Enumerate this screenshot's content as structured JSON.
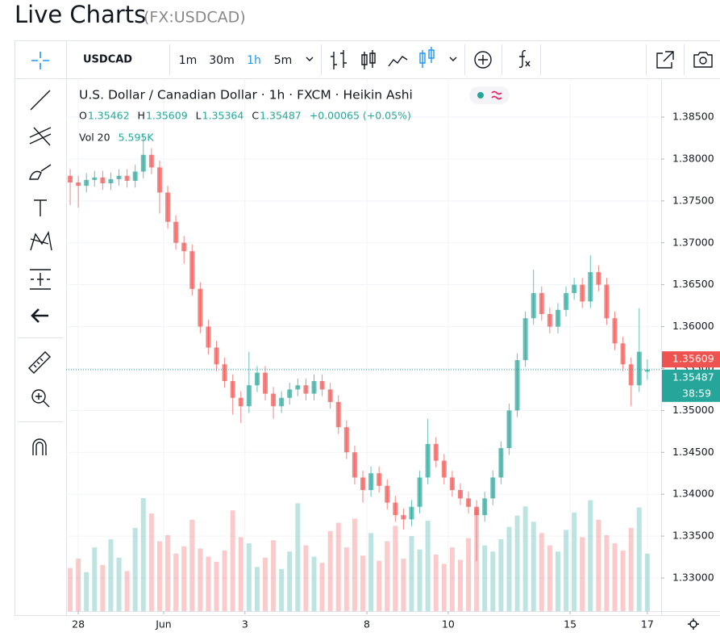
{
  "page": {
    "title": "Live Charts",
    "symbol": "(FX:USDCAD)"
  },
  "toolbar": {
    "symbol": "USDCAD",
    "intervals": [
      "1m",
      "30m",
      "1h",
      "5m"
    ],
    "active_interval": 2
  },
  "chart_data": {
    "type": "candlestick",
    "title": "U.S. Dollar / Canadian Dollar · 1h · FXCM · Heikin Ashi",
    "ohlc_legend": [
      {
        "key": "O",
        "value": "1.35462"
      },
      {
        "key": "H",
        "value": "1.35609"
      },
      {
        "key": "L",
        "value": "1.35364"
      },
      {
        "key": "C",
        "value": "1.35487"
      }
    ],
    "change": "+0.00065 (+0.05%)",
    "volume_legend": {
      "name": "Vol 20",
      "value": "5.595K"
    },
    "up_color": "#26a69a",
    "down_color": "#ef5350",
    "open": [
      1.378,
      1.3772,
      1.3768,
      1.3775,
      1.3778,
      1.3771,
      1.3776,
      1.378,
      1.3774,
      1.3785,
      1.3805,
      1.379,
      1.376,
      1.3725,
      1.37,
      1.369,
      1.3645,
      1.36,
      1.3575,
      1.3555,
      1.3535,
      1.3515,
      1.3505,
      1.353,
      1.3545,
      1.352,
      1.3505,
      1.3515,
      1.3525,
      1.353,
      1.352,
      1.3535,
      1.3525,
      1.351,
      1.348,
      1.345,
      1.342,
      1.3405,
      1.3425,
      1.341,
      1.339,
      1.3375,
      1.337,
      1.3385,
      1.342,
      1.346,
      1.344,
      1.342,
      1.3405,
      1.3395,
      1.3385,
      1.3375,
      1.3395,
      1.342,
      1.3455,
      1.35,
      1.356,
      1.361,
      1.364,
      1.3615,
      1.36,
      1.362,
      1.364,
      1.365,
      1.363,
      1.3665,
      1.365,
      1.361,
      1.358,
      1.3555,
      1.353,
      1.35462
    ],
    "high": [
      1.3788,
      1.378,
      1.3783,
      1.3786,
      1.3786,
      1.3784,
      1.3788,
      1.3788,
      1.3793,
      1.383,
      1.3813,
      1.3798,
      1.3768,
      1.3733,
      1.3708,
      1.3698,
      1.3653,
      1.3608,
      1.3583,
      1.3563,
      1.3543,
      1.3523,
      1.357,
      1.3553,
      1.3553,
      1.3528,
      1.3523,
      1.3533,
      1.3538,
      1.3538,
      1.3543,
      1.3543,
      1.3533,
      1.3518,
      1.3488,
      1.3458,
      1.3428,
      1.3433,
      1.3433,
      1.3418,
      1.3398,
      1.3383,
      1.3393,
      1.3428,
      1.349,
      1.3468,
      1.3448,
      1.3428,
      1.3413,
      1.3403,
      1.3393,
      1.3403,
      1.3428,
      1.3463,
      1.3508,
      1.3568,
      1.3618,
      1.3668,
      1.3648,
      1.3623,
      1.3628,
      1.3648,
      1.3658,
      1.3658,
      1.3685,
      1.3673,
      1.3658,
      1.3618,
      1.3588,
      1.3563,
      1.3622,
      1.35609
    ],
    "low": [
      1.3745,
      1.3742,
      1.376,
      1.3767,
      1.3763,
      1.3763,
      1.3768,
      1.3766,
      1.3766,
      1.3777,
      1.3782,
      1.3735,
      1.3717,
      1.3692,
      1.3675,
      1.3637,
      1.3592,
      1.3567,
      1.3547,
      1.3527,
      1.3495,
      1.3485,
      1.3497,
      1.3522,
      1.3512,
      1.349,
      1.3497,
      1.3507,
      1.3517,
      1.3512,
      1.3512,
      1.3517,
      1.3502,
      1.3472,
      1.3442,
      1.3412,
      1.339,
      1.3397,
      1.3402,
      1.3382,
      1.3367,
      1.3358,
      1.3362,
      1.3377,
      1.3412,
      1.3432,
      1.3412,
      1.3397,
      1.3387,
      1.3377,
      1.332,
      1.3367,
      1.3387,
      1.3412,
      1.3447,
      1.3492,
      1.3552,
      1.3602,
      1.3607,
      1.3592,
      1.3592,
      1.3612,
      1.3632,
      1.3622,
      1.3622,
      1.3642,
      1.3602,
      1.3572,
      1.3547,
      1.3505,
      1.3522,
      1.35364
    ],
    "close": [
      1.3772,
      1.3768,
      1.3775,
      1.3778,
      1.3771,
      1.3776,
      1.378,
      1.3774,
      1.3785,
      1.3805,
      1.379,
      1.376,
      1.3725,
      1.37,
      1.369,
      1.3645,
      1.36,
      1.3575,
      1.3555,
      1.3535,
      1.3515,
      1.3505,
      1.353,
      1.3545,
      1.352,
      1.3505,
      1.3515,
      1.3525,
      1.353,
      1.352,
      1.3535,
      1.3525,
      1.351,
      1.348,
      1.345,
      1.342,
      1.3405,
      1.3425,
      1.341,
      1.339,
      1.3375,
      1.337,
      1.3385,
      1.342,
      1.346,
      1.344,
      1.342,
      1.3405,
      1.3395,
      1.3385,
      1.3375,
      1.3395,
      1.342,
      1.3455,
      1.35,
      1.356,
      1.361,
      1.364,
      1.3615,
      1.36,
      1.362,
      1.364,
      1.365,
      1.363,
      1.3665,
      1.365,
      1.361,
      1.358,
      1.3555,
      1.353,
      1.357,
      1.35487
    ],
    "volume": [
      4200,
      5100,
      3800,
      6200,
      4500,
      7000,
      5200,
      3900,
      8100,
      11000,
      9500,
      6800,
      7400,
      5600,
      6300,
      8900,
      6100,
      5300,
      4800,
      5900,
      9800,
      7200,
      6600,
      4300,
      5200,
      6900,
      4100,
      5800,
      10500,
      6400,
      5300,
      4700,
      7800,
      8600,
      6200,
      9000,
      5400,
      7600,
      4900,
      6800,
      8300,
      5100,
      7300,
      6000,
      8800,
      5500,
      4600,
      6200,
      5000,
      7100,
      9900,
      6400,
      5800,
      7000,
      8200,
      9300,
      10200,
      8700,
      7600,
      6400,
      5800,
      7900,
      9600,
      7200,
      10800,
      8900,
      7400,
      6600,
      5900,
      8100,
      10100,
      5595
    ],
    "xlim": [
      -0.5,
      72.7
    ],
    "xticks": [
      {
        "value": 1,
        "label": "28"
      },
      {
        "value": 11.5,
        "label": "Jun"
      },
      {
        "value": 21.5,
        "label": "3"
      },
      {
        "value": 36.5,
        "label": "8"
      },
      {
        "value": 46.5,
        "label": "10"
      },
      {
        "value": 61.5,
        "label": "15"
      },
      {
        "value": 71,
        "label": "17"
      }
    ],
    "ylim": [
      1.32605,
      1.38963
    ],
    "yticks": [
      {
        "value": 1.33,
        "label": "1.33000"
      },
      {
        "value": 1.335,
        "label": "1.33500"
      },
      {
        "value": 1.34,
        "label": "1.34000"
      },
      {
        "value": 1.345,
        "label": "1.34500"
      },
      {
        "value": 1.35,
        "label": "1.35000"
      },
      {
        "value": 1.355,
        "label": "1.35500"
      },
      {
        "value": 1.36,
        "label": "1.36000"
      },
      {
        "value": 1.365,
        "label": "1.36500"
      },
      {
        "value": 1.37,
        "label": "1.37000"
      },
      {
        "value": 1.375,
        "label": "1.37500"
      },
      {
        "value": 1.38,
        "label": "1.38000"
      },
      {
        "value": 1.385,
        "label": "1.38500"
      }
    ],
    "grid": true,
    "last_price": {
      "value": 1.35487,
      "label": "1.35487"
    },
    "high_price": {
      "value": 1.35609,
      "label": "1.35609"
    },
    "countdown": "38:59"
  }
}
